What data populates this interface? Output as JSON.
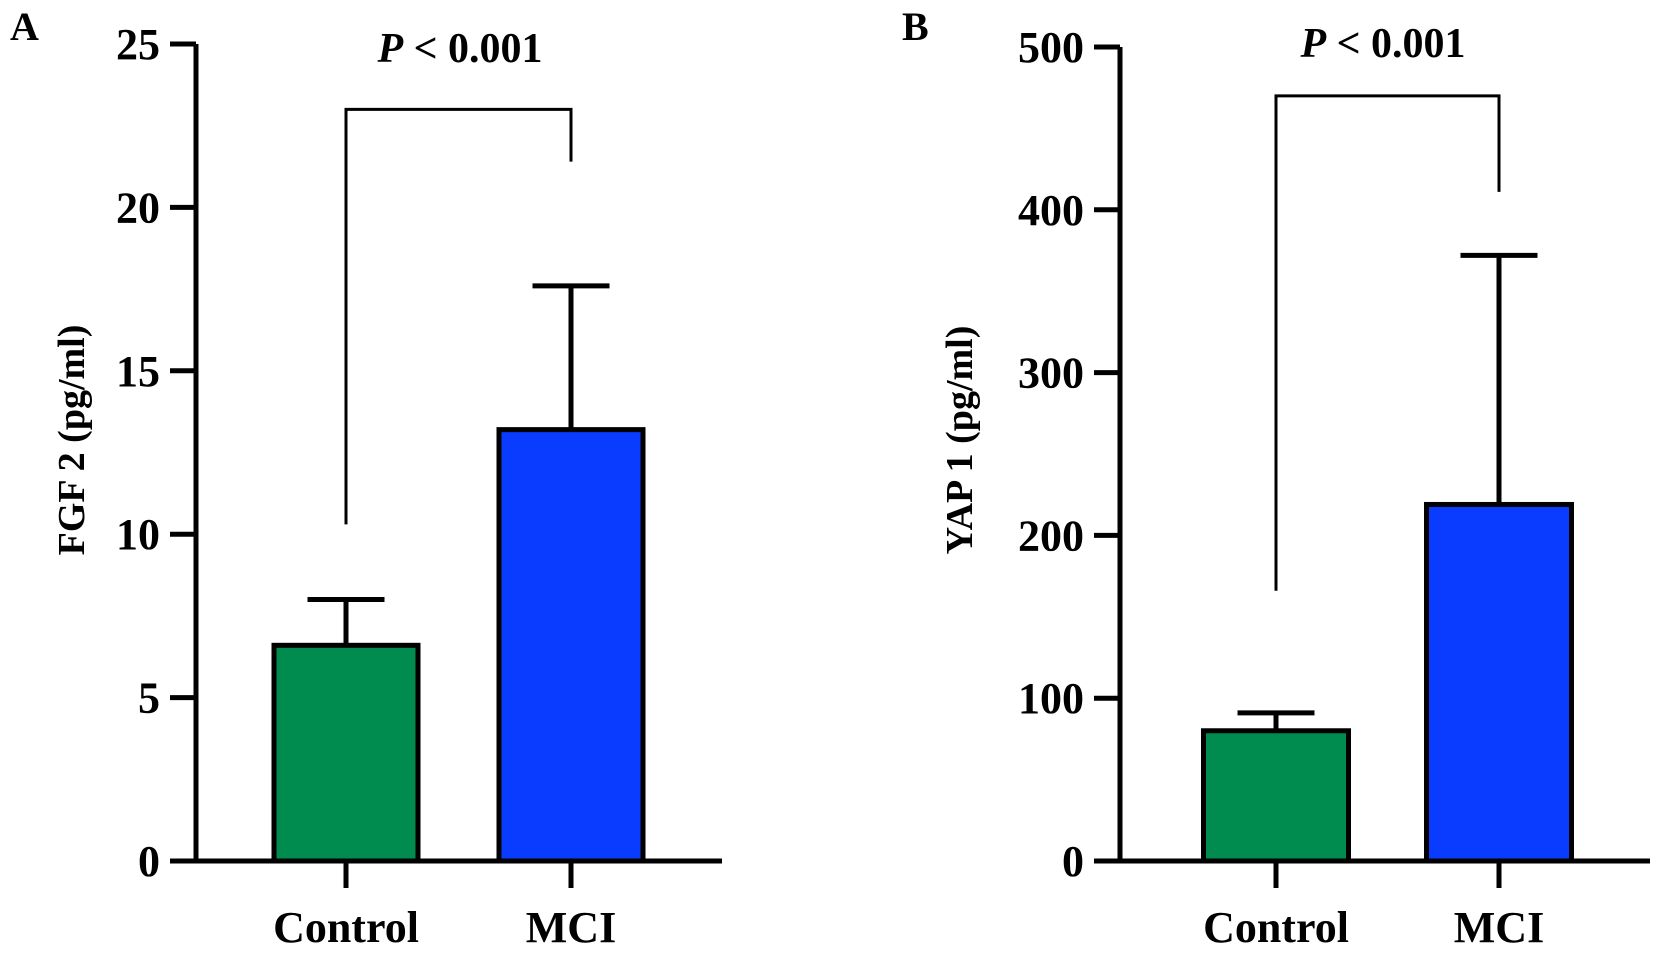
{
  "chart_data": [
    {
      "panel_label": "A",
      "type": "bar",
      "categories": [
        "Control",
        "MCI"
      ],
      "values": [
        6.6,
        13.2
      ],
      "errors": [
        1.4,
        4.4
      ],
      "ylabel": "FGF 2 (pg/ml)",
      "xlabel": "",
      "ylim": [
        0,
        25
      ],
      "yticks": [
        0,
        5,
        10,
        15,
        20,
        25
      ],
      "ytick_labels": [
        "0",
        "5",
        "10",
        "15",
        "20",
        "25"
      ],
      "bracket_levels": [
        10.3,
        23.0,
        21.4
      ],
      "p_label": "P",
      "p_rest": " < 0.001",
      "colors": [
        "#008c4f",
        "#0a3cff"
      ]
    },
    {
      "panel_label": "B",
      "type": "bar",
      "categories": [
        "Control",
        "MCI"
      ],
      "values": [
        80,
        219
      ],
      "errors": [
        11,
        153
      ],
      "ylabel": "YAP 1 (pg/ml)",
      "xlabel": "",
      "ylim": [
        0,
        500
      ],
      "yticks": [
        0,
        100,
        200,
        300,
        400,
        500
      ],
      "ytick_labels": [
        "0",
        "100",
        "200",
        "300",
        "400",
        "500"
      ],
      "bracket_levels": [
        166,
        470,
        411
      ],
      "p_label": "P",
      "p_rest": " < 0.001",
      "colors": [
        "#008c4f",
        "#0a3cff"
      ]
    }
  ]
}
